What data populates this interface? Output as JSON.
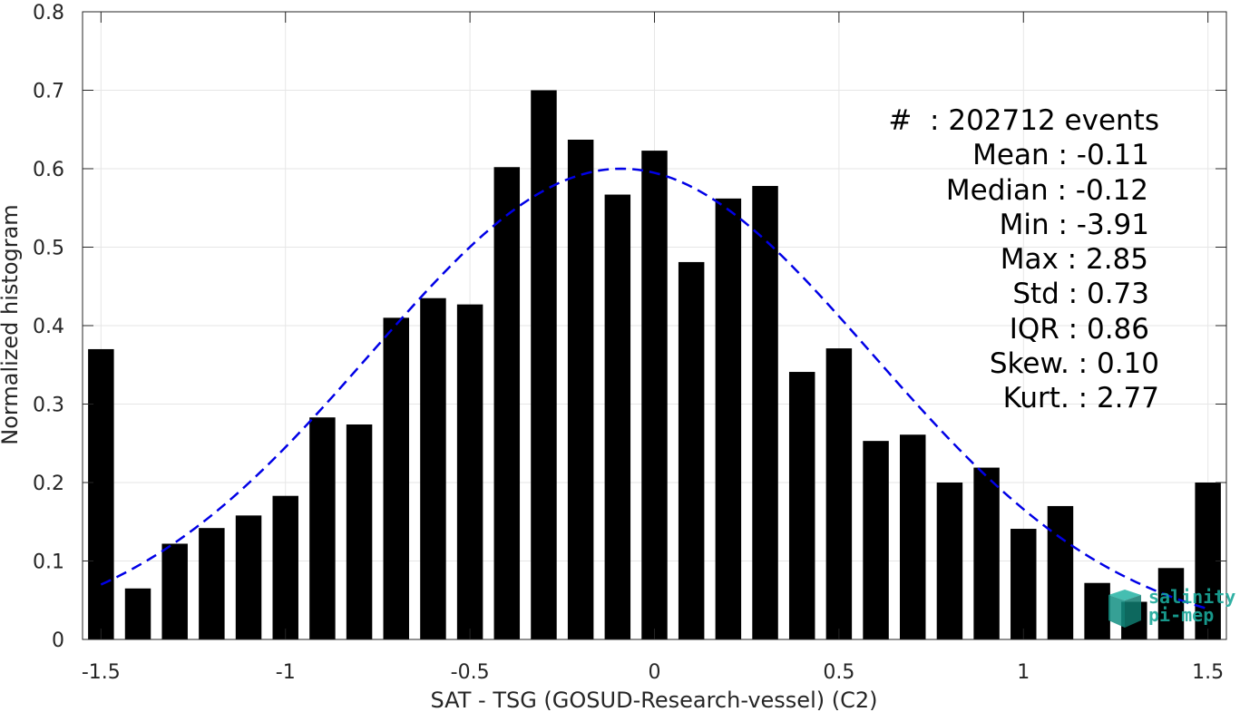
{
  "chart_data": {
    "type": "bar",
    "xlabel": "SAT - TSG (GOSUD-Research-vessel) (C2)",
    "ylabel": "Normalized histogram",
    "xlim": [
      -1.55,
      1.55
    ],
    "ylim": [
      0,
      0.8
    ],
    "xticks": [
      -1.5,
      -1,
      -0.5,
      0,
      0.5,
      1,
      1.5
    ],
    "xtick_labels": [
      "-1.5",
      "-1",
      "-0.5",
      "0",
      "0.5",
      "1",
      "1.5"
    ],
    "yticks": [
      0,
      0.1,
      0.2,
      0.3,
      0.4,
      0.5,
      0.6,
      0.7,
      0.8
    ],
    "ytick_labels": [
      "0",
      "0.1",
      "0.2",
      "0.3",
      "0.4",
      "0.5",
      "0.6",
      "0.7",
      "0.8"
    ],
    "grid": true,
    "bar_width": 0.07,
    "bar_color": "#000000",
    "x": [
      -1.5,
      -1.4,
      -1.3,
      -1.2,
      -1.1,
      -1.0,
      -0.9,
      -0.8,
      -0.7,
      -0.6,
      -0.5,
      -0.4,
      -0.3,
      -0.2,
      -0.1,
      0.0,
      0.1,
      0.2,
      0.3,
      0.4,
      0.5,
      0.6,
      0.7,
      0.8,
      0.9,
      1.0,
      1.1,
      1.2,
      1.3,
      1.4,
      1.5
    ],
    "values": [
      0.37,
      0.065,
      0.122,
      0.142,
      0.158,
      0.183,
      0.283,
      0.274,
      0.41,
      0.435,
      0.427,
      0.602,
      0.7,
      0.637,
      0.567,
      0.623,
      0.481,
      0.562,
      0.578,
      0.341,
      0.371,
      0.253,
      0.261,
      0.2,
      0.219,
      0.141,
      0.17,
      0.072,
      0.048,
      0.091,
      0.2
    ],
    "fit": {
      "name": "Gaussian fit",
      "type": "line",
      "style": "dashed",
      "color": "#0000e6",
      "mean": -0.09,
      "std": 0.68,
      "peak": 0.6,
      "range": [
        -1.5,
        1.5
      ]
    },
    "annotations": [
      "#  : 202712 events",
      "Mean : -0.11",
      "Median : -0.12",
      "Min : -3.91",
      "Max : 2.85",
      "Std : 0.73",
      "IQR : 0.86",
      "Skew. : 0.10",
      "Kurt. : 2.77"
    ]
  },
  "logo": {
    "line1": "salinity",
    "line2": "pi-mep",
    "color": "#1aa89a"
  }
}
